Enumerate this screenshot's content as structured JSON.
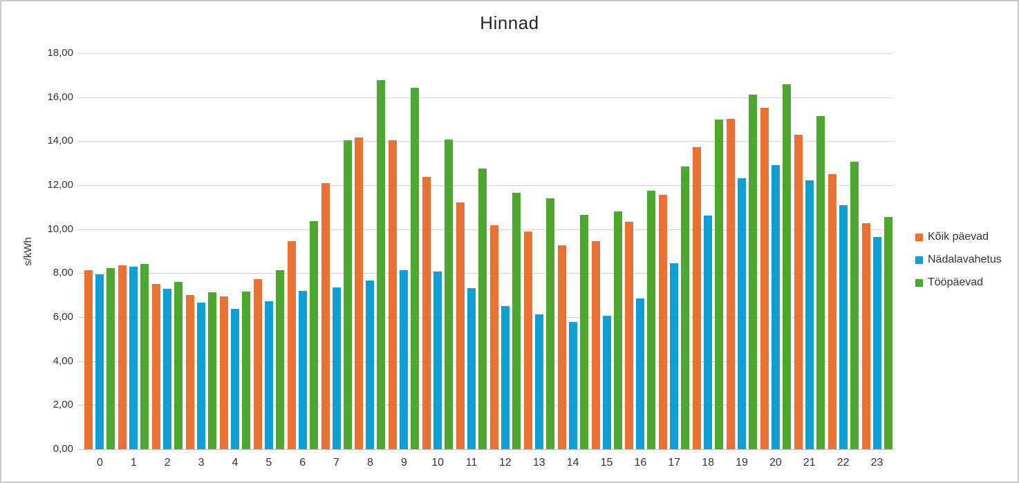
{
  "chart_data": {
    "type": "bar",
    "title": "Hinnad",
    "xlabel": "",
    "ylabel": "s/kWh",
    "ylim": [
      0,
      18
    ],
    "ytick_step": 2,
    "grid": true,
    "legend_position": "right",
    "decimal_separator": ",",
    "categories": [
      "0",
      "1",
      "2",
      "3",
      "4",
      "5",
      "6",
      "7",
      "8",
      "9",
      "10",
      "11",
      "12",
      "13",
      "14",
      "15",
      "16",
      "17",
      "18",
      "19",
      "20",
      "21",
      "22",
      "23"
    ],
    "yticks": [
      {
        "v": 0,
        "label": "0,00"
      },
      {
        "v": 2,
        "label": "2,00"
      },
      {
        "v": 4,
        "label": "4,00"
      },
      {
        "v": 6,
        "label": "6,00"
      },
      {
        "v": 8,
        "label": "8,00"
      },
      {
        "v": 10,
        "label": "10,00"
      },
      {
        "v": 12,
        "label": "12,00"
      },
      {
        "v": 14,
        "label": "14,00"
      },
      {
        "v": 16,
        "label": "16,00"
      },
      {
        "v": 18,
        "label": "18,00"
      }
    ],
    "series": [
      {
        "name": "Kõik päevad",
        "color": "#E97132",
        "values": [
          8.13,
          8.37,
          7.5,
          7.01,
          6.94,
          7.73,
          9.45,
          12.11,
          14.16,
          14.05,
          12.37,
          11.2,
          10.18,
          9.9,
          9.26,
          9.46,
          10.33,
          11.56,
          13.73,
          15.03,
          15.52,
          14.3,
          12.51,
          10.27
        ]
      },
      {
        "name": "Nädalavahetus",
        "color": "#0F9ED5",
        "values": [
          7.95,
          8.28,
          7.29,
          6.67,
          6.39,
          6.72,
          7.2,
          7.36,
          7.66,
          8.14,
          8.08,
          7.33,
          6.51,
          6.14,
          5.77,
          6.07,
          6.86,
          8.46,
          10.63,
          12.31,
          12.91,
          12.21,
          11.1,
          9.65
        ]
      },
      {
        "name": "Tööpäevad",
        "color": "#4EA72E",
        "values": [
          8.23,
          8.41,
          7.61,
          7.13,
          7.17,
          8.13,
          10.38,
          14.03,
          16.78,
          16.44,
          14.08,
          12.77,
          11.67,
          11.41,
          10.66,
          10.82,
          11.76,
          12.86,
          15.0,
          16.13,
          16.59,
          15.15,
          13.07,
          10.57
        ]
      }
    ]
  }
}
